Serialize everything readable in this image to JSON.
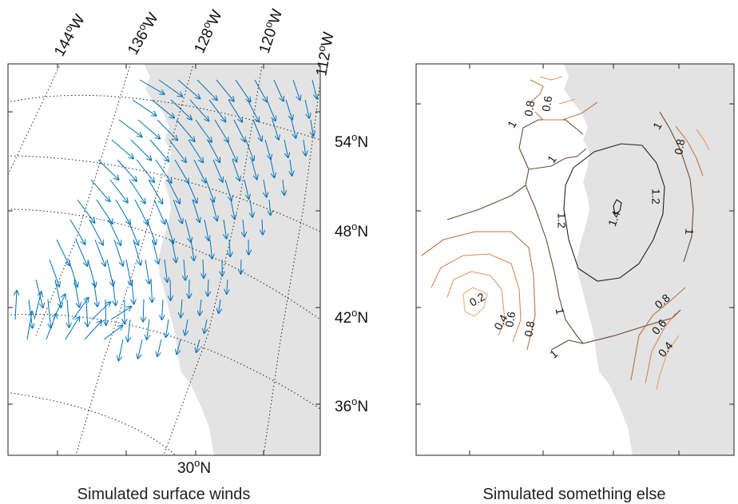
{
  "panels": [
    {
      "caption": "Simulated surface winds",
      "longitude_labels": [
        {
          "deg": "144",
          "hemi": "W"
        },
        {
          "deg": "136",
          "hemi": "W"
        },
        {
          "deg": "128",
          "hemi": "W"
        },
        {
          "deg": "120",
          "hemi": "W"
        },
        {
          "deg": "112",
          "hemi": "W"
        }
      ],
      "latitude_labels": [
        {
          "deg": "54",
          "hemi": "N"
        },
        {
          "deg": "48",
          "hemi": "N"
        },
        {
          "deg": "42",
          "hemi": "N"
        },
        {
          "deg": "36",
          "hemi": "N"
        },
        {
          "deg": "30",
          "hemi": "N"
        }
      ],
      "layer": "wind vectors",
      "vector_color": "#0072bd"
    },
    {
      "caption": "Simulated something else",
      "layer": "contours",
      "contour_levels": [
        "0.2",
        "0.4",
        "0.6",
        "0.8",
        "1",
        "1.2",
        "1.4"
      ],
      "contour_labels": [
        {
          "text": "0.8"
        },
        {
          "text": "0.6"
        },
        {
          "text": "1"
        },
        {
          "text": "1"
        },
        {
          "text": "0.8"
        },
        {
          "text": "1"
        },
        {
          "text": "1.2"
        },
        {
          "text": "1.4"
        },
        {
          "text": "1.2"
        },
        {
          "text": "1"
        },
        {
          "text": "0.2"
        },
        {
          "text": "0.4"
        },
        {
          "text": "0.6"
        },
        {
          "text": "0.8"
        },
        {
          "text": "1"
        },
        {
          "text": "1"
        },
        {
          "text": "0.8"
        },
        {
          "text": "0.6"
        },
        {
          "text": "0.4"
        }
      ]
    }
  ],
  "colors": {
    "land": "#e3e3e3",
    "frame": "#222222",
    "graticule": "#222222",
    "contour_low": "#e6a06a",
    "contour_high": "#111111"
  }
}
